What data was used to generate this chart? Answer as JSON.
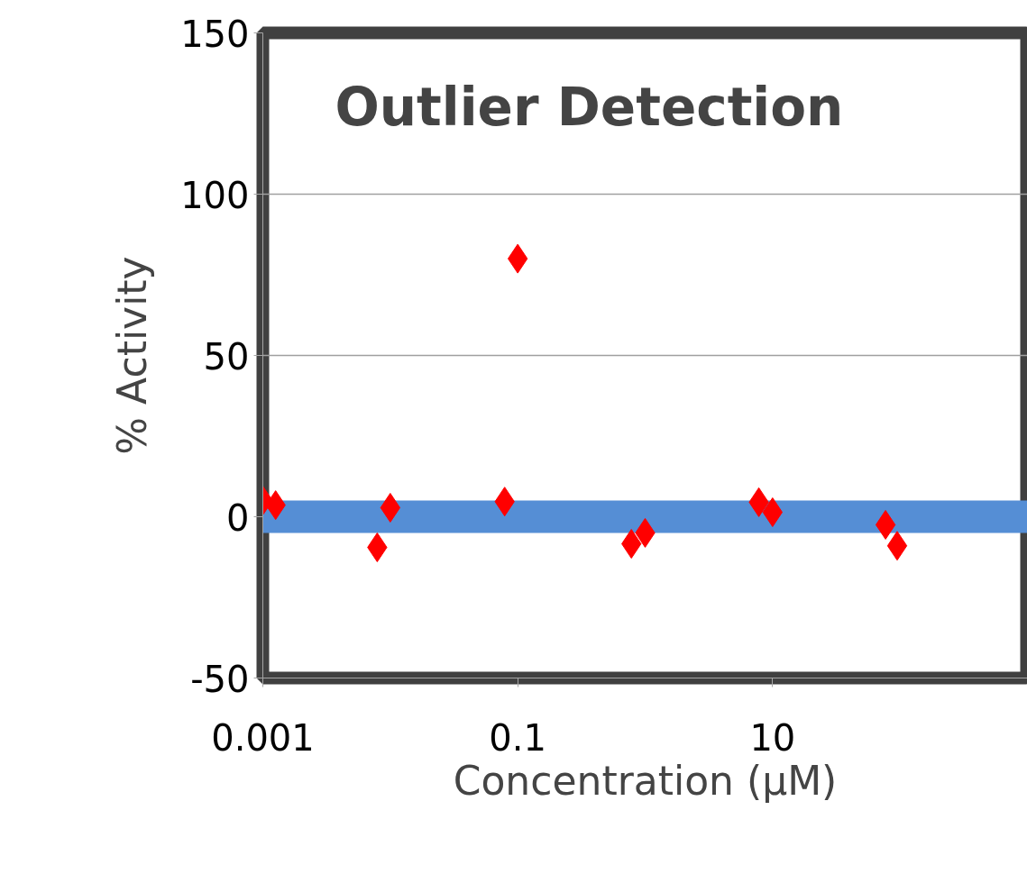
{
  "chart_data": {
    "type": "scatter",
    "title": "Outlier Detection",
    "xlabel": "Concentration (µM)",
    "ylabel": "% Activity",
    "log": "x",
    "xlim": [
      0.001,
      1000
    ],
    "xticks": [
      0.001,
      0.1,
      10
    ],
    "ylim": [
      -50,
      150
    ],
    "yticks": [
      -50,
      0,
      50,
      100,
      150
    ],
    "grid": "y",
    "series": [
      {
        "type": "line",
        "color": "#558ed5",
        "x": [
          0.001,
          1000
        ],
        "values": [
          0,
          0
        ]
      },
      {
        "marker": "diamond",
        "color": "#ff0000",
        "x": [
          0.001,
          0.00126,
          0.0079,
          0.01,
          0.079,
          0.1,
          0.78,
          1,
          7.8,
          10,
          77,
          95
        ],
        "values": [
          5,
          3.6,
          -9.5,
          2.8,
          4.7,
          80,
          -8.4,
          -5,
          4.5,
          1.4,
          -2.5,
          -9
        ]
      }
    ]
  }
}
